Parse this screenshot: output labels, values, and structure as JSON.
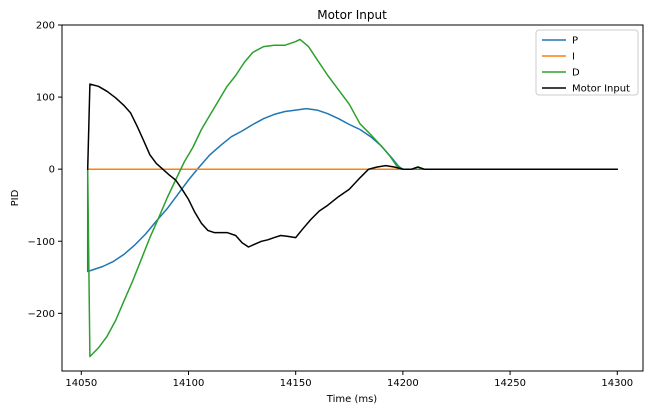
{
  "chart_data": {
    "type": "line",
    "title": "Motor Input",
    "xlabel": "Time (ms)",
    "ylabel": "PID",
    "xlim": [
      14041,
      14312
    ],
    "ylim": [
      -280,
      200
    ],
    "xticks": [
      14050,
      14100,
      14150,
      14200,
      14250,
      14300
    ],
    "yticks": [
      -200,
      -100,
      0,
      100,
      200
    ],
    "xtick_labels": [
      "14050",
      "14100",
      "14150",
      "14200",
      "14250",
      "14300"
    ],
    "ytick_labels": [
      "−200",
      "−100",
      "0",
      "100",
      "200"
    ],
    "grid": false,
    "legend_position": "top-right",
    "series": [
      {
        "name": "P",
        "color": "#1f77b4",
        "points": [
          [
            14053,
            0
          ],
          [
            14053,
            -142
          ],
          [
            14060,
            -135
          ],
          [
            14065,
            -128
          ],
          [
            14070,
            -118
          ],
          [
            14075,
            -105
          ],
          [
            14080,
            -90
          ],
          [
            14085,
            -72
          ],
          [
            14090,
            -55
          ],
          [
            14095,
            -35
          ],
          [
            14100,
            -15
          ],
          [
            14105,
            3
          ],
          [
            14110,
            20
          ],
          [
            14115,
            33
          ],
          [
            14120,
            45
          ],
          [
            14125,
            53
          ],
          [
            14130,
            62
          ],
          [
            14135,
            70
          ],
          [
            14140,
            76
          ],
          [
            14145,
            80
          ],
          [
            14150,
            82
          ],
          [
            14155,
            84
          ],
          [
            14160,
            82
          ],
          [
            14165,
            77
          ],
          [
            14170,
            70
          ],
          [
            14175,
            62
          ],
          [
            14180,
            55
          ],
          [
            14185,
            45
          ],
          [
            14190,
            32
          ],
          [
            14195,
            15
          ],
          [
            14198,
            4
          ],
          [
            14200,
            0
          ],
          [
            14205,
            0
          ],
          [
            14300,
            0
          ]
        ]
      },
      {
        "name": "I",
        "color": "#ff7f0e",
        "points": [
          [
            14053,
            0
          ],
          [
            14300,
            0
          ]
        ]
      },
      {
        "name": "D",
        "color": "#2ca02c",
        "points": [
          [
            14053,
            0
          ],
          [
            14054,
            -260
          ],
          [
            14058,
            -248
          ],
          [
            14062,
            -232
          ],
          [
            14066,
            -210
          ],
          [
            14070,
            -182
          ],
          [
            14074,
            -155
          ],
          [
            14078,
            -125
          ],
          [
            14082,
            -95
          ],
          [
            14086,
            -68
          ],
          [
            14090,
            -40
          ],
          [
            14094,
            -15
          ],
          [
            14098,
            10
          ],
          [
            14102,
            30
          ],
          [
            14106,
            55
          ],
          [
            14110,
            75
          ],
          [
            14114,
            95
          ],
          [
            14118,
            115
          ],
          [
            14122,
            130
          ],
          [
            14126,
            148
          ],
          [
            14130,
            162
          ],
          [
            14135,
            170
          ],
          [
            14140,
            172
          ],
          [
            14145,
            172
          ],
          [
            14150,
            177
          ],
          [
            14152,
            180
          ],
          [
            14156,
            170
          ],
          [
            14160,
            152
          ],
          [
            14165,
            130
          ],
          [
            14170,
            110
          ],
          [
            14175,
            90
          ],
          [
            14180,
            63
          ],
          [
            14185,
            48
          ],
          [
            14190,
            32
          ],
          [
            14194,
            18
          ],
          [
            14197,
            5
          ],
          [
            14200,
            0
          ],
          [
            14205,
            0
          ],
          [
            14300,
            0
          ]
        ]
      },
      {
        "name": "Motor Input",
        "color": "#000000",
        "points": [
          [
            14053,
            0
          ],
          [
            14054,
            118
          ],
          [
            14058,
            115
          ],
          [
            14062,
            108
          ],
          [
            14066,
            99
          ],
          [
            14070,
            88
          ],
          [
            14073,
            78
          ],
          [
            14076,
            60
          ],
          [
            14079,
            40
          ],
          [
            14082,
            20
          ],
          [
            14085,
            8
          ],
          [
            14088,
            0
          ],
          [
            14091,
            -8
          ],
          [
            14094,
            -15
          ],
          [
            14097,
            -28
          ],
          [
            14100,
            -42
          ],
          [
            14103,
            -60
          ],
          [
            14106,
            -75
          ],
          [
            14109,
            -85
          ],
          [
            14112,
            -88
          ],
          [
            14118,
            -88
          ],
          [
            14122,
            -92
          ],
          [
            14125,
            -102
          ],
          [
            14128,
            -108
          ],
          [
            14131,
            -104
          ],
          [
            14134,
            -100
          ],
          [
            14137,
            -98
          ],
          [
            14140,
            -95
          ],
          [
            14143,
            -92
          ],
          [
            14146,
            -93
          ],
          [
            14150,
            -95
          ],
          [
            14153,
            -84
          ],
          [
            14157,
            -70
          ],
          [
            14161,
            -58
          ],
          [
            14165,
            -50
          ],
          [
            14170,
            -38
          ],
          [
            14175,
            -28
          ],
          [
            14180,
            -12
          ],
          [
            14184,
            0
          ],
          [
            14188,
            3
          ],
          [
            14192,
            5
          ],
          [
            14196,
            3
          ],
          [
            14200,
            0
          ],
          [
            14204,
            0
          ],
          [
            14207,
            3
          ],
          [
            14210,
            0
          ],
          [
            14300,
            0
          ]
        ]
      }
    ]
  }
}
